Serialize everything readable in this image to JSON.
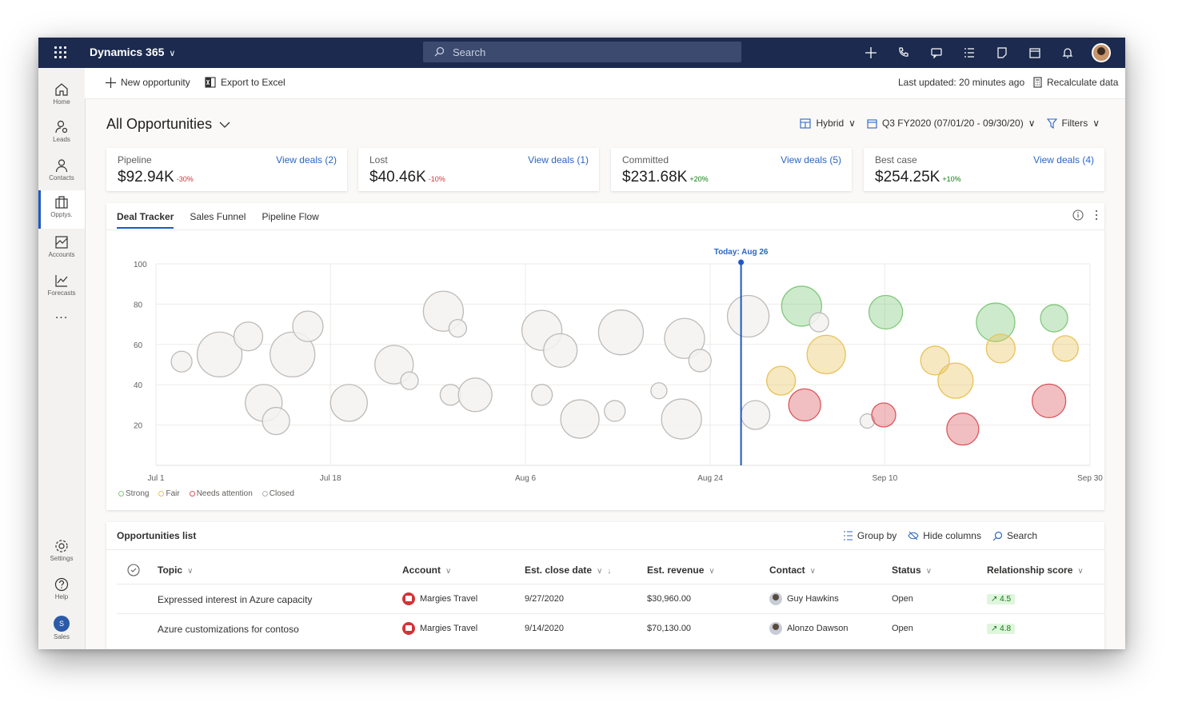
{
  "topbar": {
    "app_name": "Dynamics 365",
    "search_placeholder": "Search"
  },
  "nav": {
    "items": [
      {
        "label": "Home",
        "icon": "home-icon"
      },
      {
        "label": "Leads",
        "icon": "leads-icon"
      },
      {
        "label": "Contacts",
        "icon": "contacts-icon"
      },
      {
        "label": "Opptys.",
        "icon": "opportunities-icon",
        "active": true
      },
      {
        "label": "Accounts",
        "icon": "accounts-icon"
      },
      {
        "label": "Forecasts",
        "icon": "forecasts-icon"
      }
    ],
    "more": "...",
    "bottom": [
      {
        "label": "Settings",
        "icon": "gear-icon"
      },
      {
        "label": "Help",
        "icon": "help-icon"
      },
      {
        "label": "Sales",
        "avatar": "S"
      }
    ]
  },
  "commandbar": {
    "new_opportunity": "New opportunity",
    "export_excel": "Export to Excel",
    "last_updated": "Last updated: 20 minutes ago",
    "recalculate": "Recalculate data"
  },
  "page": {
    "title": "All Opportunities",
    "view_mode": "Hybrid",
    "period": "Q3 FY2020 (07/01/20 - 09/30/20)",
    "filters": "Filters"
  },
  "kpis": [
    {
      "label": "Pipeline",
      "value": "$92.94K",
      "change": "-30%",
      "change_color": "#d13438",
      "link": "View deals (2)"
    },
    {
      "label": "Lost",
      "value": "$40.46K",
      "change": "-10%",
      "change_color": "#d13438",
      "link": "View deals (1)"
    },
    {
      "label": "Committed",
      "value": "$231.68K",
      "change": "+20%",
      "change_color": "#107c10",
      "link": "View deals (5)"
    },
    {
      "label": "Best case",
      "value": "$254.25K",
      "change": "+10%",
      "change_color": "#107c10",
      "link": "View deals (4)"
    }
  ],
  "tabs": [
    "Deal Tracker",
    "Sales Funnel",
    "Pipeline Flow"
  ],
  "colors": {
    "Strong": "#7fc97a",
    "Fair": "#e8c35a",
    "Needs attention": "#d9575d",
    "Closed": "#c8c6c4",
    "accent": "#1b58c9"
  },
  "chart_data": {
    "type": "scatter",
    "today_label": "Today: Aug 26",
    "today_day": 57,
    "x_ticks": [
      {
        "label": "Jul 1",
        "day": 0
      },
      {
        "label": "Jul 18",
        "day": 17
      },
      {
        "label": "Aug 6",
        "day": 36
      },
      {
        "label": "Aug 24",
        "day": 54
      },
      {
        "label": "Sep 10",
        "day": 71
      },
      {
        "label": "Sep 30",
        "day": 91
      }
    ],
    "y_ticks": [
      20,
      40,
      60,
      80,
      100
    ],
    "ylim": [
      0,
      100
    ],
    "xlim": [
      0,
      91
    ],
    "legend": [
      "Strong",
      "Fair",
      "Needs attention",
      "Closed"
    ],
    "points": [
      {
        "day": 2.5,
        "score": 51.5,
        "size": 13,
        "status": "Closed"
      },
      {
        "day": 6.2,
        "score": 55,
        "size": 28,
        "status": "Closed"
      },
      {
        "day": 9,
        "score": 64,
        "size": 18,
        "status": "Closed"
      },
      {
        "day": 10.5,
        "score": 31,
        "size": 23,
        "status": "Closed"
      },
      {
        "day": 11.7,
        "score": 22,
        "size": 17,
        "status": "Closed"
      },
      {
        "day": 13.3,
        "score": 55,
        "size": 28,
        "status": "Closed"
      },
      {
        "day": 14.8,
        "score": 69,
        "size": 19,
        "status": "Closed"
      },
      {
        "day": 18.8,
        "score": 31,
        "size": 23,
        "status": "Closed"
      },
      {
        "day": 23.2,
        "score": 50,
        "size": 24,
        "status": "Closed"
      },
      {
        "day": 24.7,
        "score": 42,
        "size": 11,
        "status": "Closed"
      },
      {
        "day": 28,
        "score": 76.5,
        "size": 25,
        "status": "Closed"
      },
      {
        "day": 29.4,
        "score": 68,
        "size": 11,
        "status": "Closed"
      },
      {
        "day": 28.7,
        "score": 35,
        "size": 13,
        "status": "Closed"
      },
      {
        "day": 31.1,
        "score": 35,
        "size": 21,
        "status": "Closed"
      },
      {
        "day": 37.6,
        "score": 67,
        "size": 25,
        "status": "Closed"
      },
      {
        "day": 37.6,
        "score": 35,
        "size": 13,
        "status": "Closed"
      },
      {
        "day": 39.4,
        "score": 57,
        "size": 21,
        "status": "Closed"
      },
      {
        "day": 41.3,
        "score": 23,
        "size": 24,
        "status": "Closed"
      },
      {
        "day": 44.7,
        "score": 27,
        "size": 13,
        "status": "Closed"
      },
      {
        "day": 45.3,
        "score": 66,
        "size": 28,
        "status": "Closed"
      },
      {
        "day": 49,
        "score": 37,
        "size": 10,
        "status": "Closed"
      },
      {
        "day": 51.5,
        "score": 63,
        "size": 25,
        "status": "Closed"
      },
      {
        "day": 51.2,
        "score": 23,
        "size": 25,
        "status": "Closed"
      },
      {
        "day": 53,
        "score": 52,
        "size": 14,
        "status": "Closed"
      },
      {
        "day": 57.7,
        "score": 74,
        "size": 26,
        "status": "Closed"
      },
      {
        "day": 58.4,
        "score": 25,
        "size": 18,
        "status": "Closed"
      },
      {
        "day": 60.9,
        "score": 42,
        "size": 18,
        "status": "Fair"
      },
      {
        "day": 62.9,
        "score": 79,
        "size": 25,
        "status": "Strong"
      },
      {
        "day": 64.6,
        "score": 71,
        "size": 12,
        "status": "Closed"
      },
      {
        "day": 65.3,
        "score": 55,
        "size": 24,
        "status": "Fair"
      },
      {
        "day": 63.2,
        "score": 30,
        "size": 20,
        "status": "Needs attention"
      },
      {
        "day": 69.3,
        "score": 22,
        "size": 9,
        "status": "Closed"
      },
      {
        "day": 70.9,
        "score": 25,
        "size": 15,
        "status": "Needs attention"
      },
      {
        "day": 71.1,
        "score": 76,
        "size": 21,
        "status": "Strong"
      },
      {
        "day": 75.9,
        "score": 52,
        "size": 18,
        "status": "Fair"
      },
      {
        "day": 77.9,
        "score": 42,
        "size": 22,
        "status": "Fair"
      },
      {
        "day": 78.6,
        "score": 18,
        "size": 20,
        "status": "Needs attention"
      },
      {
        "day": 81.8,
        "score": 71,
        "size": 24,
        "status": "Strong"
      },
      {
        "day": 82.3,
        "score": 58,
        "size": 18,
        "status": "Fair"
      },
      {
        "day": 87.5,
        "score": 73,
        "size": 17,
        "status": "Strong"
      },
      {
        "day": 88.6,
        "score": 58,
        "size": 16,
        "status": "Fair"
      },
      {
        "day": 87,
        "score": 32,
        "size": 21,
        "status": "Needs attention"
      }
    ]
  },
  "list": {
    "title": "Opportunities list",
    "tools": [
      "Group by",
      "Hide columns",
      "Search"
    ],
    "columns": [
      "Topic",
      "Account",
      "Est. close date",
      "Est. revenue",
      "Contact",
      "Status",
      "Relationship score"
    ],
    "rows": [
      {
        "topic": "Expressed interest in Azure capacity",
        "account": "Margies Travel",
        "close": "9/27/2020",
        "revenue": "$30,960.00",
        "contact": "Guy Hawkins",
        "status": "Open",
        "score": "4.5"
      },
      {
        "topic": "Azure customizations for contoso",
        "account": "Margies Travel",
        "close": "9/14/2020",
        "revenue": "$70,130.00",
        "contact": "Alonzo Dawson",
        "status": "Open",
        "score": "4.8"
      }
    ]
  }
}
